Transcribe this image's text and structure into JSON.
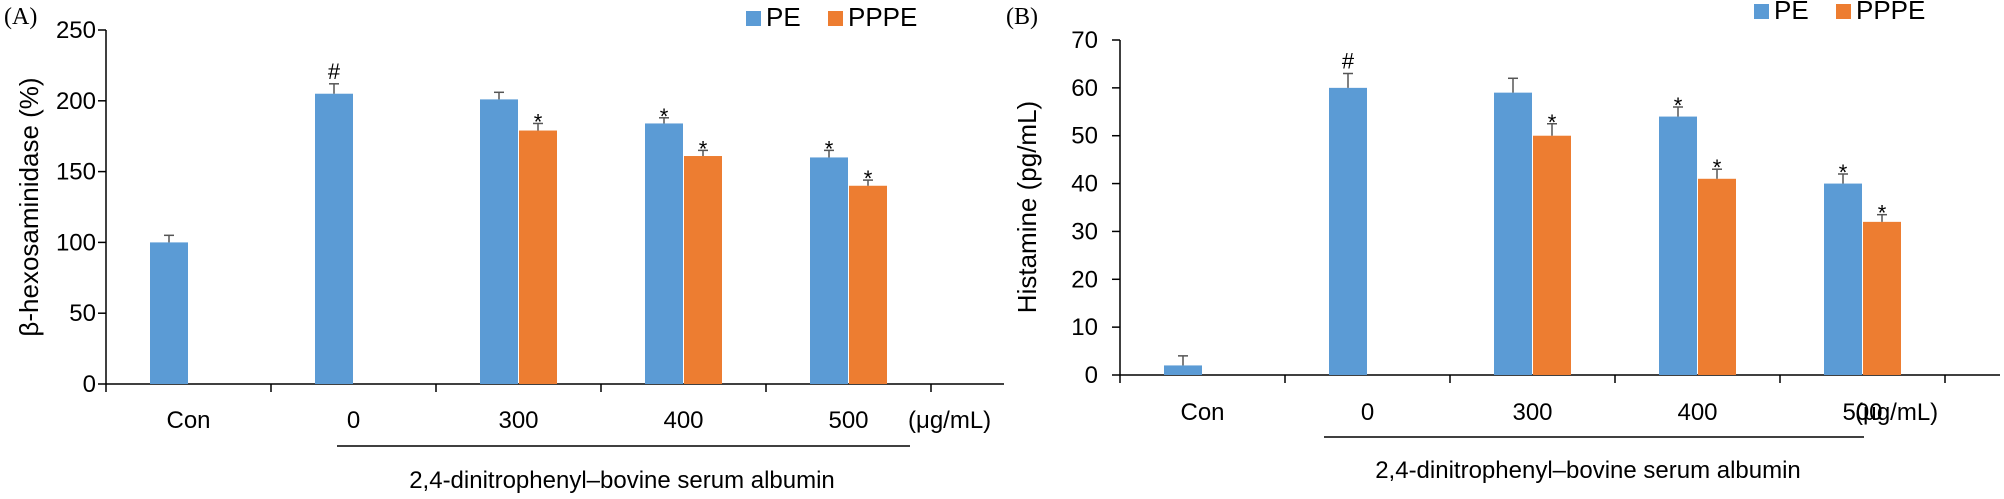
{
  "chart_data": [
    {
      "type": "bar",
      "panel_label": "(A)",
      "categories": [
        "Con",
        "0",
        "300",
        "400",
        "500"
      ],
      "unit_label": "(μg/mL)",
      "group_caption": "2,4-dinitrophenyl–bovine  serum albumin",
      "ylabel": "β-hexosaminidase (%)",
      "ylim": [
        0,
        250
      ],
      "yticks": [
        0,
        50,
        100,
        150,
        200,
        250
      ],
      "legend_position": "top-right",
      "series": [
        {
          "name": "PE",
          "color": "#5b9bd5",
          "values": [
            100,
            205,
            201,
            184,
            160
          ],
          "errors": [
            5,
            7,
            5,
            4,
            5
          ],
          "markers": [
            "",
            "#",
            "",
            "*",
            "*"
          ]
        },
        {
          "name": "PPPE",
          "color": "#ed7d31",
          "values": [
            null,
            null,
            179,
            161,
            140
          ],
          "errors": [
            null,
            null,
            5,
            4,
            4
          ],
          "markers": [
            "",
            "",
            "*",
            "*",
            "*"
          ]
        }
      ]
    },
    {
      "type": "bar",
      "panel_label": "(B)",
      "categories": [
        "Con",
        "0",
        "300",
        "400",
        "500"
      ],
      "unit_label": "(μg/mL)",
      "group_caption": "2,4-dinitrophenyl–bovine  serum albumin",
      "ylabel": "Histamine (pg/mL)",
      "ylim": [
        0,
        70
      ],
      "yticks": [
        0,
        10,
        20,
        30,
        40,
        50,
        60,
        70
      ],
      "legend_position": "top-right",
      "series": [
        {
          "name": "PE",
          "color": "#5b9bd5",
          "values": [
            2,
            60,
            59,
            54,
            40
          ],
          "errors": [
            2,
            3,
            3,
            2,
            2
          ],
          "markers": [
            "",
            "#",
            "",
            "*",
            "*"
          ]
        },
        {
          "name": "PPPE",
          "color": "#ed7d31",
          "values": [
            null,
            null,
            50,
            41,
            32
          ],
          "errors": [
            null,
            null,
            2.5,
            2,
            1.5
          ],
          "markers": [
            "",
            "",
            "*",
            "*",
            "*"
          ]
        }
      ]
    }
  ]
}
